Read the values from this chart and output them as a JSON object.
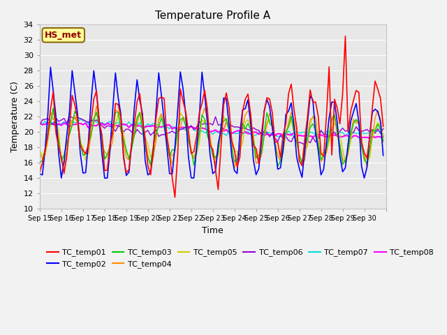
{
  "title": "Temperature Profile A",
  "xlabel": "Time",
  "ylabel": "Temperature (C)",
  "ylim": [
    10,
    34
  ],
  "yticks": [
    10,
    12,
    14,
    16,
    18,
    20,
    22,
    24,
    26,
    28,
    30,
    32,
    34
  ],
  "xtick_labels": [
    "Sep 15",
    "Sep 16",
    "Sep 17",
    "Sep 18",
    "Sep 19",
    "Sep 20",
    "Sep 21",
    "Sep 22",
    "Sep 23",
    "Sep 24",
    "Sep 25",
    "Sep 26",
    "Sep 27",
    "Sep 28",
    "Sep 29",
    "Sep 30"
  ],
  "annotation_label": "HS_met",
  "annotation_color": "#8B0000",
  "annotation_bg": "#FFFF99",
  "series_colors": {
    "TC_temp01": "#FF0000",
    "TC_temp02": "#0000FF",
    "TC_temp03": "#00CC00",
    "TC_temp04": "#FF8C00",
    "TC_temp05": "#CCCC00",
    "TC_temp06": "#9400D3",
    "TC_temp07": "#00DDDD",
    "TC_temp08": "#FF00FF"
  },
  "figsize": [
    6.4,
    4.8
  ],
  "dpi": 100,
  "fig_bg": "#F2F2F2",
  "plot_bg": "#E8E8E8",
  "grid_color": "#FFFFFF",
  "title_fontsize": 11,
  "axis_label_fontsize": 9,
  "tick_fontsize": 8,
  "legend_fontsize": 8
}
